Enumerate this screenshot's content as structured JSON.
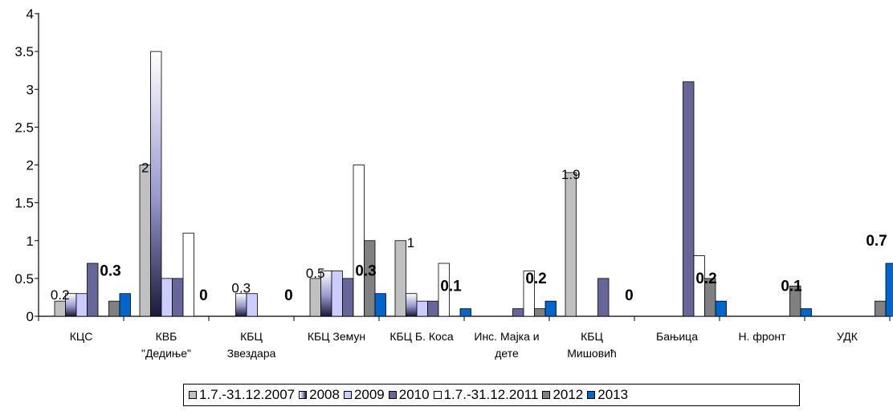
{
  "chart_data": {
    "type": "bar",
    "categories": [
      [
        "КЦС"
      ],
      [
        "КВБ",
        "\"Дедиње\""
      ],
      [
        "КБЦ",
        "Звездара"
      ],
      [
        "КБЦ Земун"
      ],
      [
        "КБЦ Б. Коса"
      ],
      [
        "Инс. Мајка и",
        "дете"
      ],
      [
        "КБЦ",
        "Мишовић"
      ],
      [
        "Бањица"
      ],
      [
        "Н. фронт"
      ],
      [
        "УДК"
      ]
    ],
    "ylim": [
      0,
      4
    ],
    "yticks": [
      "0",
      "0.5",
      "1",
      "1.5",
      "2",
      "2.5",
      "3",
      "3.5",
      "4"
    ],
    "legend_position": "bottom",
    "series": [
      {
        "name": "1.7.-31.12.2007",
        "color": "#c0c0c0",
        "style": "solid",
        "values": [
          0.2,
          2,
          null,
          0.5,
          1,
          null,
          1.9,
          null,
          null,
          null
        ]
      },
      {
        "name": "2008",
        "color": "#9999cc",
        "style": "gradient",
        "values": [
          0.3,
          3.5,
          0.3,
          0.6,
          0.3,
          null,
          null,
          null,
          null,
          null
        ]
      },
      {
        "name": "2009",
        "color": "#ccccff",
        "style": "solid",
        "values": [
          0.3,
          0.5,
          0.3,
          0.6,
          0.2,
          null,
          null,
          null,
          null,
          null
        ]
      },
      {
        "name": "2010",
        "color": "#666699",
        "style": "solid",
        "values": [
          0.7,
          0.5,
          null,
          0.5,
          0.2,
          0.1,
          0.5,
          3.1,
          null,
          null
        ]
      },
      {
        "name": "1.7.-31.12.2011",
        "color": "#ffffff",
        "style": "solid",
        "values": [
          null,
          1.1,
          null,
          2,
          0.7,
          0.6,
          null,
          0.8,
          null,
          null
        ]
      },
      {
        "name": "2012",
        "color": "#808080",
        "style": "solid",
        "values": [
          0.2,
          null,
          null,
          1,
          null,
          0.1,
          null,
          0.5,
          0.4,
          0.2
        ]
      },
      {
        "name": "2013",
        "color": "#0066cc",
        "style": "solid",
        "values": [
          0.3,
          0,
          0,
          0.3,
          0.1,
          0.2,
          0,
          0.2,
          0.1,
          0.7
        ]
      }
    ],
    "data_labels": [
      {
        "category": 0,
        "series": 0,
        "text": "0.2",
        "bold": false
      },
      {
        "category": 0,
        "series": 6,
        "text": "0.3",
        "bold": true
      },
      {
        "category": 1,
        "series": 0,
        "text": "2",
        "bold": false
      },
      {
        "category": 1,
        "series": 6,
        "text": "0",
        "bold": true
      },
      {
        "category": 2,
        "series": 1,
        "text": "0.3",
        "bold": false
      },
      {
        "category": 2,
        "series": 6,
        "text": "0",
        "bold": true
      },
      {
        "category": 3,
        "series": 0,
        "text": "0.5",
        "bold": false
      },
      {
        "category": 3,
        "series": 6,
        "text": "0.3",
        "bold": true
      },
      {
        "category": 4,
        "series": 0,
        "text": "1",
        "bold": false
      },
      {
        "category": 4,
        "series": 6,
        "text": "0.1",
        "bold": true
      },
      {
        "category": 5,
        "series": 6,
        "text": "0.2",
        "bold": true
      },
      {
        "category": 6,
        "series": 0,
        "text": "1.9",
        "bold": false
      },
      {
        "category": 6,
        "series": 6,
        "text": "0",
        "bold": true
      },
      {
        "category": 7,
        "series": 6,
        "text": "0.2",
        "bold": true
      },
      {
        "category": 8,
        "series": 6,
        "text": "0.1",
        "bold": true
      },
      {
        "category": 9,
        "series": 6,
        "text": "0.7",
        "bold": true
      }
    ]
  }
}
